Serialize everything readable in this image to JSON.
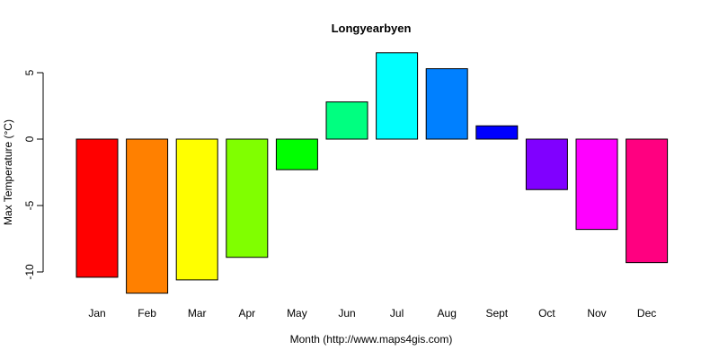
{
  "chart_data": {
    "type": "bar",
    "title": "Longyearbyen",
    "xlabel": "Month (http://www.maps4gis.com)",
    "ylabel": "Max Temperature (°C)",
    "ylim": [
      -10,
      5
    ],
    "yticks": [
      "-10",
      "-5",
      "0",
      "5"
    ],
    "categories": [
      "Jan",
      "Feb",
      "Mar",
      "Apr",
      "May",
      "Jun",
      "Jul",
      "Aug",
      "Sept",
      "Oct",
      "Nov",
      "Dec"
    ],
    "values": [
      -10.4,
      -11.6,
      -10.6,
      -8.9,
      -2.3,
      2.8,
      6.5,
      5.3,
      1.0,
      -3.8,
      -6.8,
      -9.3
    ],
    "colors": [
      "#ff0000",
      "#ff8000",
      "#ffff00",
      "#80ff00",
      "#00ff00",
      "#00ff80",
      "#00ffff",
      "#0080ff",
      "#0000ff",
      "#8000ff",
      "#ff00ff",
      "#ff0080"
    ],
    "grid": false,
    "legend": "none"
  }
}
